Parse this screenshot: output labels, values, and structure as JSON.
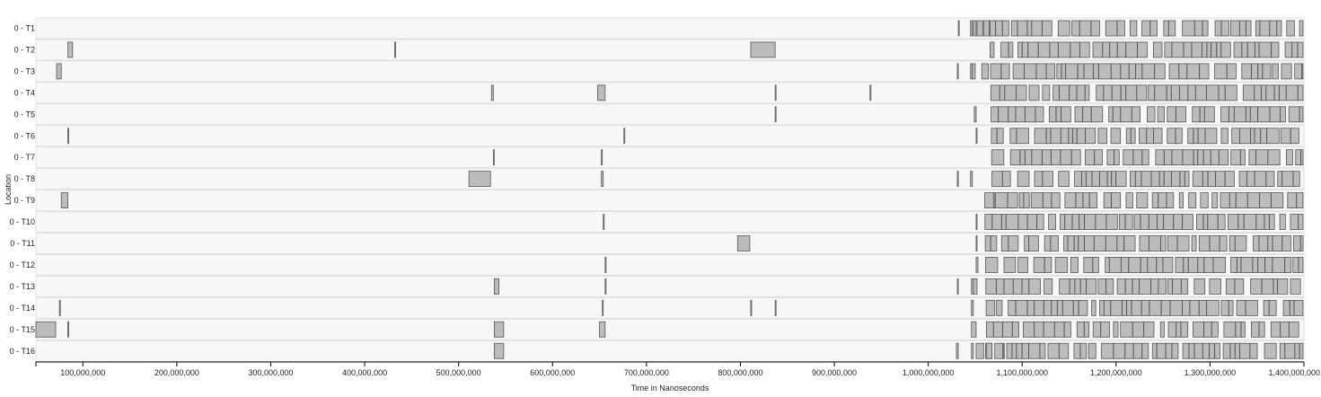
{
  "chart_data": {
    "type": "gantt",
    "xlabel": "Time in Nanoseconds",
    "ylabel": "Location",
    "xlim": [
      50000000,
      1400000000
    ],
    "x_ticks": [
      100000000,
      200000000,
      300000000,
      400000000,
      500000000,
      600000000,
      700000000,
      800000000,
      900000000,
      1000000000,
      1100000000,
      1200000000,
      1300000000,
      1400000000
    ],
    "x_tick_labels": [
      "100,000,000",
      "200,000,000",
      "300,000,000",
      "400,000,000",
      "500,000,000",
      "600,000,000",
      "700,000,000",
      "800,000,000",
      "900,000,000",
      "1,000,000,000",
      "1,100,000,000",
      "1,200,000,000",
      "1,300,000,000",
      "1,400,000,000"
    ],
    "lanes": [
      {
        "label": "0 - T1",
        "intervals": [
          [
            1032000000,
            1033000000
          ],
          [
            1045000000,
            1047000000
          ],
          [
            1048000000,
            1051000000
          ],
          [
            1052000000,
            1058000000
          ],
          [
            1059000000,
            1065000000
          ]
        ]
      },
      {
        "label": "0 - T2",
        "intervals": [
          [
            84000000,
            89000000
          ],
          [
            432000000,
            433000000
          ],
          [
            811000000,
            837000000
          ],
          [
            1066000000,
            1069000000
          ]
        ]
      },
      {
        "label": "0 - T3",
        "intervals": [
          [
            72000000,
            77000000
          ],
          [
            1031000000,
            1032000000
          ],
          [
            1045000000,
            1047000000
          ],
          [
            1047000000,
            1050000000
          ],
          [
            1057000000,
            1064000000
          ]
        ]
      },
      {
        "label": "0 - T4",
        "intervals": [
          [
            535000000,
            537000000
          ],
          [
            648000000,
            656000000
          ],
          [
            837000000,
            838000000
          ],
          [
            938000000,
            939000000
          ]
        ]
      },
      {
        "label": "0 - T5",
        "intervals": [
          [
            837000000,
            838000000
          ],
          [
            1049000000,
            1051000000
          ]
        ]
      },
      {
        "label": "0 - T6",
        "intervals": [
          [
            84000000,
            85000000
          ],
          [
            676000000,
            677000000
          ],
          [
            1051000000,
            1052000000
          ]
        ]
      },
      {
        "label": "0 - T7",
        "intervals": [
          [
            537000000,
            538000000
          ],
          [
            652000000,
            653000000
          ]
        ]
      },
      {
        "label": "0 - T8",
        "intervals": [
          [
            511000000,
            534000000
          ],
          [
            652000000,
            654000000
          ],
          [
            1031000000,
            1032000000
          ],
          [
            1045000000,
            1047000000
          ]
        ]
      },
      {
        "label": "0 - T9",
        "intervals": [
          [
            77000000,
            84000000
          ],
          [
            1069000000,
            1071000000
          ]
        ]
      },
      {
        "label": "0 - T10",
        "intervals": [
          [
            654000000,
            655000000
          ],
          [
            1051000000,
            1052000000
          ]
        ]
      },
      {
        "label": "0 - T11",
        "intervals": [
          [
            797000000,
            810000000
          ],
          [
            1051000000,
            1052000000
          ]
        ]
      },
      {
        "label": "0 - T12",
        "intervals": [
          [
            656000000,
            657000000
          ],
          [
            1051000000,
            1053000000
          ]
        ]
      },
      {
        "label": "0 - T13",
        "intervals": [
          [
            538000000,
            543000000
          ],
          [
            656000000,
            657000000
          ],
          [
            1031000000,
            1032000000
          ],
          [
            1046000000,
            1048000000
          ],
          [
            1048000000,
            1052000000
          ]
        ]
      },
      {
        "label": "0 - T14",
        "intervals": [
          [
            75000000,
            76000000
          ],
          [
            653000000,
            654000000
          ],
          [
            811000000,
            812000000
          ],
          [
            837000000,
            838000000
          ],
          [
            1046000000,
            1048000000
          ]
        ]
      },
      {
        "label": "0 - T15",
        "intervals": [
          [
            50000000,
            71000000
          ],
          [
            84000000,
            85000000
          ],
          [
            538000000,
            548000000
          ],
          [
            650000000,
            656000000
          ],
          [
            1046000000,
            1051000000
          ]
        ]
      },
      {
        "label": "0 - T16",
        "intervals": [
          [
            538000000,
            548000000
          ],
          [
            1030000000,
            1032000000
          ],
          [
            1046000000,
            1048000000
          ],
          [
            1051000000,
            1059000000
          ],
          [
            1061000000,
            1068000000
          ],
          [
            1080000000,
            1081000000
          ]
        ]
      }
    ],
    "dense_region": [
      1060000000,
      1400000000
    ]
  }
}
